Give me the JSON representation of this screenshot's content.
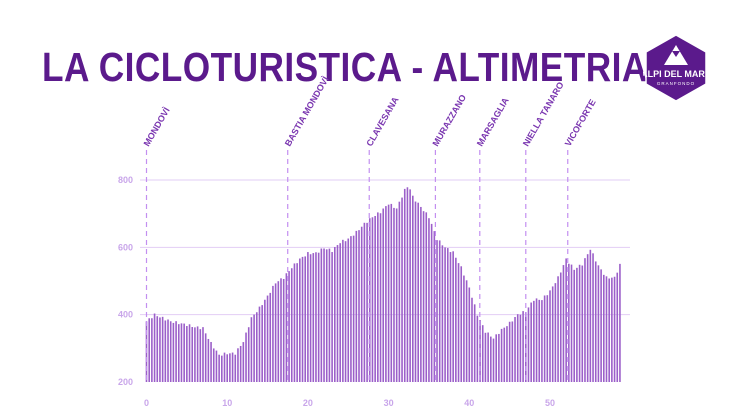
{
  "title": "LA CICLOTURISTICA - ALTIMETRIA",
  "logo": {
    "name": "ALPI DEL MARE",
    "sub": "GRANFONDO",
    "color": "#5b1a8c"
  },
  "chart_data": {
    "type": "bar",
    "title": "LA CICLOTURISTICA - ALTIMETRIA",
    "xlabel": "",
    "ylabel": "",
    "xlim": [
      0,
      59
    ],
    "ylim": [
      200,
      800
    ],
    "xticks": [
      0,
      10,
      20,
      30,
      40,
      50
    ],
    "yticks": [
      200,
      400,
      600,
      800
    ],
    "grid": true,
    "bar_color": "#9b5fc9",
    "x": [
      0,
      1,
      2,
      3,
      4,
      5,
      6,
      7,
      8,
      9,
      10,
      11,
      12,
      13,
      14,
      15,
      16,
      17,
      18,
      19,
      20,
      21,
      22,
      23,
      24,
      25,
      26,
      27,
      28,
      29,
      30,
      31,
      32,
      32.5,
      33,
      34,
      35,
      36,
      37,
      38,
      39,
      40,
      41,
      42,
      43,
      44,
      45,
      46,
      47,
      48,
      49,
      50,
      51,
      52,
      53,
      54,
      55,
      56,
      57,
      58,
      58.8
    ],
    "values": [
      380,
      400,
      390,
      380,
      375,
      370,
      363,
      360,
      315,
      280,
      285,
      285,
      320,
      390,
      420,
      455,
      495,
      510,
      540,
      565,
      582,
      583,
      598,
      590,
      615,
      625,
      645,
      670,
      690,
      705,
      730,
      715,
      770,
      785,
      750,
      720,
      690,
      625,
      600,
      585,
      540,
      480,
      400,
      350,
      330,
      355,
      375,
      400,
      410,
      445,
      445,
      470,
      510,
      565,
      535,
      550,
      595,
      545,
      510,
      510,
      555
    ],
    "waypoints": [
      {
        "label": "MONDOVÌ",
        "km": 0
      },
      {
        "label": "BASTIA MONDOVÌ",
        "km": 17.5
      },
      {
        "label": "CLAVESANA",
        "km": 27.6
      },
      {
        "label": "MURAZZANO",
        "km": 35.8
      },
      {
        "label": "MARSAGLIA",
        "km": 41.3
      },
      {
        "label": "NIELLA TANARO",
        "km": 47
      },
      {
        "label": "VICOFORTE",
        "km": 52.2
      }
    ]
  }
}
